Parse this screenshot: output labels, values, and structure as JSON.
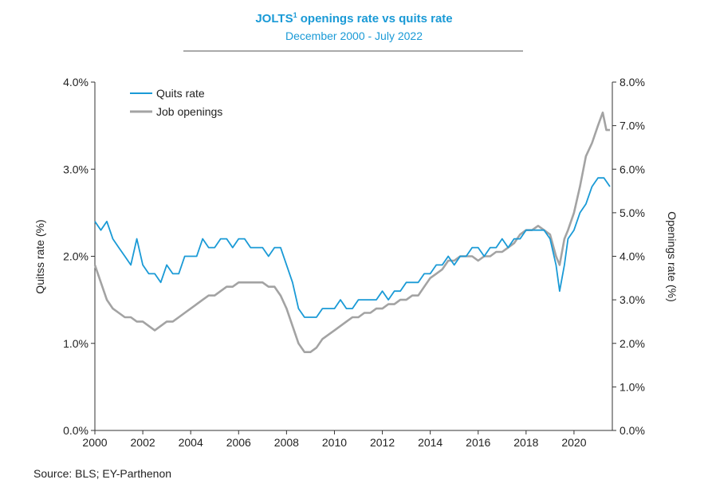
{
  "chart_data": {
    "type": "line",
    "title": "JOLTS",
    "title_superscript": "1",
    "title_rest": " openings rate vs quits rate",
    "subtitle": "December 2000 - July 2022",
    "ylabel_left": "Quitss rate (%)",
    "ylabel_right": "Openings rate (%)",
    "source": "Source: BLS; EY-Parthenon",
    "x_ticks": [
      "2000",
      "2002",
      "2004",
      "2006",
      "2008",
      "2010",
      "2012",
      "2014",
      "2016",
      "2018",
      "2020"
    ],
    "xlim": [
      2000,
      2021.6
    ],
    "y_left_ticks": [
      "0.0%",
      "1.0%",
      "2.0%",
      "3.0%",
      "4.0%"
    ],
    "ylim_left": [
      0,
      4
    ],
    "y_right_ticks": [
      "0.0%",
      "1.0%",
      "2.0%",
      "3.0%",
      "4.0%",
      "5.0%",
      "6.0%",
      "7.0%",
      "8.0%"
    ],
    "ylim_right": [
      0,
      8
    ],
    "legend_position": "top-left",
    "series": [
      {
        "name": "Quits rate",
        "axis": "left",
        "color": "#1a9ad6",
        "points": [
          [
            2000.0,
            2.4
          ],
          [
            2000.25,
            2.3
          ],
          [
            2000.5,
            2.4
          ],
          [
            2000.75,
            2.2
          ],
          [
            2001.0,
            2.1
          ],
          [
            2001.25,
            2.0
          ],
          [
            2001.5,
            1.9
          ],
          [
            2001.75,
            2.2
          ],
          [
            2002.0,
            1.9
          ],
          [
            2002.25,
            1.8
          ],
          [
            2002.5,
            1.8
          ],
          [
            2002.75,
            1.7
          ],
          [
            2003.0,
            1.9
          ],
          [
            2003.25,
            1.8
          ],
          [
            2003.5,
            1.8
          ],
          [
            2003.75,
            2.0
          ],
          [
            2004.0,
            2.0
          ],
          [
            2004.25,
            2.0
          ],
          [
            2004.5,
            2.2
          ],
          [
            2004.75,
            2.1
          ],
          [
            2005.0,
            2.1
          ],
          [
            2005.25,
            2.2
          ],
          [
            2005.5,
            2.2
          ],
          [
            2005.75,
            2.1
          ],
          [
            2006.0,
            2.2
          ],
          [
            2006.25,
            2.2
          ],
          [
            2006.5,
            2.1
          ],
          [
            2006.75,
            2.1
          ],
          [
            2007.0,
            2.1
          ],
          [
            2007.25,
            2.0
          ],
          [
            2007.5,
            2.1
          ],
          [
            2007.75,
            2.1
          ],
          [
            2008.0,
            1.9
          ],
          [
            2008.25,
            1.7
          ],
          [
            2008.5,
            1.4
          ],
          [
            2008.75,
            1.3
          ],
          [
            2009.0,
            1.3
          ],
          [
            2009.25,
            1.3
          ],
          [
            2009.5,
            1.4
          ],
          [
            2009.75,
            1.4
          ],
          [
            2010.0,
            1.4
          ],
          [
            2010.25,
            1.5
          ],
          [
            2010.5,
            1.4
          ],
          [
            2010.75,
            1.4
          ],
          [
            2011.0,
            1.5
          ],
          [
            2011.25,
            1.5
          ],
          [
            2011.5,
            1.5
          ],
          [
            2011.75,
            1.5
          ],
          [
            2012.0,
            1.6
          ],
          [
            2012.25,
            1.5
          ],
          [
            2012.5,
            1.6
          ],
          [
            2012.75,
            1.6
          ],
          [
            2013.0,
            1.7
          ],
          [
            2013.25,
            1.7
          ],
          [
            2013.5,
            1.7
          ],
          [
            2013.75,
            1.8
          ],
          [
            2014.0,
            1.8
          ],
          [
            2014.25,
            1.9
          ],
          [
            2014.5,
            1.9
          ],
          [
            2014.75,
            2.0
          ],
          [
            2015.0,
            1.9
          ],
          [
            2015.25,
            2.0
          ],
          [
            2015.5,
            2.0
          ],
          [
            2015.75,
            2.1
          ],
          [
            2016.0,
            2.1
          ],
          [
            2016.25,
            2.0
          ],
          [
            2016.5,
            2.1
          ],
          [
            2016.75,
            2.1
          ],
          [
            2017.0,
            2.2
          ],
          [
            2017.25,
            2.1
          ],
          [
            2017.5,
            2.2
          ],
          [
            2017.75,
            2.2
          ],
          [
            2018.0,
            2.3
          ],
          [
            2018.25,
            2.3
          ],
          [
            2018.5,
            2.3
          ],
          [
            2018.75,
            2.3
          ],
          [
            2019.0,
            2.2
          ],
          [
            2019.25,
            1.9
          ],
          [
            2019.4,
            1.6
          ],
          [
            2019.6,
            1.9
          ],
          [
            2019.75,
            2.2
          ],
          [
            2020.0,
            2.3
          ],
          [
            2020.25,
            2.5
          ],
          [
            2020.5,
            2.6
          ],
          [
            2020.75,
            2.8
          ],
          [
            2021.0,
            2.9
          ],
          [
            2021.25,
            2.9
          ],
          [
            2021.5,
            2.8
          ]
        ]
      },
      {
        "name": "Job openings",
        "axis": "right",
        "color": "#a3a3a3",
        "points": [
          [
            2000.0,
            3.8
          ],
          [
            2000.25,
            3.4
          ],
          [
            2000.5,
            3.0
          ],
          [
            2000.75,
            2.8
          ],
          [
            2001.0,
            2.7
          ],
          [
            2001.25,
            2.6
          ],
          [
            2001.5,
            2.6
          ],
          [
            2001.75,
            2.5
          ],
          [
            2002.0,
            2.5
          ],
          [
            2002.25,
            2.4
          ],
          [
            2002.5,
            2.3
          ],
          [
            2002.75,
            2.4
          ],
          [
            2003.0,
            2.5
          ],
          [
            2003.25,
            2.5
          ],
          [
            2003.5,
            2.6
          ],
          [
            2003.75,
            2.7
          ],
          [
            2004.0,
            2.8
          ],
          [
            2004.25,
            2.9
          ],
          [
            2004.5,
            3.0
          ],
          [
            2004.75,
            3.1
          ],
          [
            2005.0,
            3.1
          ],
          [
            2005.25,
            3.2
          ],
          [
            2005.5,
            3.3
          ],
          [
            2005.75,
            3.3
          ],
          [
            2006.0,
            3.4
          ],
          [
            2006.25,
            3.4
          ],
          [
            2006.5,
            3.4
          ],
          [
            2006.75,
            3.4
          ],
          [
            2007.0,
            3.4
          ],
          [
            2007.25,
            3.3
          ],
          [
            2007.5,
            3.3
          ],
          [
            2007.75,
            3.1
          ],
          [
            2008.0,
            2.8
          ],
          [
            2008.25,
            2.4
          ],
          [
            2008.5,
            2.0
          ],
          [
            2008.75,
            1.8
          ],
          [
            2009.0,
            1.8
          ],
          [
            2009.25,
            1.9
          ],
          [
            2009.5,
            2.1
          ],
          [
            2009.75,
            2.2
          ],
          [
            2010.0,
            2.3
          ],
          [
            2010.25,
            2.4
          ],
          [
            2010.5,
            2.5
          ],
          [
            2010.75,
            2.6
          ],
          [
            2011.0,
            2.6
          ],
          [
            2011.25,
            2.7
          ],
          [
            2011.5,
            2.7
          ],
          [
            2011.75,
            2.8
          ],
          [
            2012.0,
            2.8
          ],
          [
            2012.25,
            2.9
          ],
          [
            2012.5,
            2.9
          ],
          [
            2012.75,
            3.0
          ],
          [
            2013.0,
            3.0
          ],
          [
            2013.25,
            3.1
          ],
          [
            2013.5,
            3.1
          ],
          [
            2013.75,
            3.3
          ],
          [
            2014.0,
            3.5
          ],
          [
            2014.25,
            3.6
          ],
          [
            2014.5,
            3.7
          ],
          [
            2014.75,
            3.9
          ],
          [
            2015.0,
            3.9
          ],
          [
            2015.25,
            4.0
          ],
          [
            2015.5,
            4.0
          ],
          [
            2015.75,
            4.0
          ],
          [
            2016.0,
            3.9
          ],
          [
            2016.25,
            4.0
          ],
          [
            2016.5,
            4.0
          ],
          [
            2016.75,
            4.1
          ],
          [
            2017.0,
            4.1
          ],
          [
            2017.25,
            4.2
          ],
          [
            2017.5,
            4.3
          ],
          [
            2017.75,
            4.5
          ],
          [
            2018.0,
            4.6
          ],
          [
            2018.25,
            4.6
          ],
          [
            2018.5,
            4.7
          ],
          [
            2018.75,
            4.6
          ],
          [
            2019.0,
            4.5
          ],
          [
            2019.25,
            4.0
          ],
          [
            2019.4,
            3.8
          ],
          [
            2019.6,
            4.4
          ],
          [
            2019.75,
            4.6
          ],
          [
            2020.0,
            5.0
          ],
          [
            2020.25,
            5.6
          ],
          [
            2020.5,
            6.3
          ],
          [
            2020.75,
            6.6
          ],
          [
            2021.0,
            7.0
          ],
          [
            2021.2,
            7.3
          ],
          [
            2021.35,
            6.9
          ],
          [
            2021.5,
            6.9
          ]
        ]
      }
    ]
  }
}
